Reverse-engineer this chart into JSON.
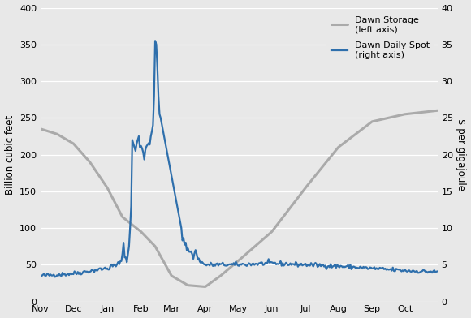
{
  "ylabel_left": "Billion cubic feet",
  "ylabel_right": "$ per gigajoule",
  "ylim_left": [
    0,
    400
  ],
  "ylim_right": [
    0,
    40
  ],
  "yticks_left": [
    0,
    50,
    100,
    150,
    200,
    250,
    300,
    350,
    400
  ],
  "yticks_right": [
    0,
    5,
    10,
    15,
    20,
    25,
    30,
    35,
    40
  ],
  "x_labels": [
    "Nov",
    "Dec",
    "Jan",
    "Feb",
    "Mar",
    "Apr",
    "May",
    "Jun",
    "Jul",
    "Aug",
    "Sep",
    "Oct"
  ],
  "background_color": "#e8e8e8",
  "storage_color": "#aaaaaa",
  "price_color": "#2e6fac",
  "storage_linewidth": 2.2,
  "price_linewidth": 1.6,
  "legend_storage": "Dawn Storage\n(left axis)",
  "legend_price": "Dawn Daily Spot\n(right axis)",
  "month_starts_day": [
    0,
    30,
    61,
    92,
    120,
    151,
    181,
    212,
    243,
    273,
    304,
    334
  ],
  "n_days": 365,
  "storage_key_points": {
    "days": [
      0,
      15,
      30,
      45,
      61,
      75,
      92,
      105,
      120,
      135,
      151,
      165,
      181,
      212,
      243,
      273,
      304,
      334,
      364
    ],
    "values": [
      235,
      228,
      215,
      190,
      155,
      115,
      95,
      75,
      35,
      22,
      20,
      35,
      55,
      95,
      155,
      210,
      245,
      255,
      260
    ]
  },
  "price_key_points": {
    "days": [
      0,
      30,
      60,
      75,
      80,
      83,
      85,
      87,
      89,
      91,
      93,
      95,
      97,
      100,
      103,
      106,
      108,
      110,
      112,
      114,
      116,
      118,
      120,
      123,
      125,
      130,
      135,
      140,
      150,
      180,
      210,
      243,
      273,
      304,
      334,
      364
    ],
    "values": [
      3.5,
      3.8,
      4.5,
      5.2,
      6.5,
      9.0,
      12.0,
      16.0,
      21.5,
      22.0,
      21.0,
      20.0,
      21.0,
      22.0,
      24.0,
      35.5,
      35.0,
      32.0,
      25.5,
      25.0,
      19.0,
      15.5,
      15.0,
      14.5,
      12.0,
      9.0,
      7.0,
      6.5,
      5.0,
      5.0,
      5.2,
      5.0,
      4.8,
      4.5,
      4.2,
      4.0
    ]
  }
}
